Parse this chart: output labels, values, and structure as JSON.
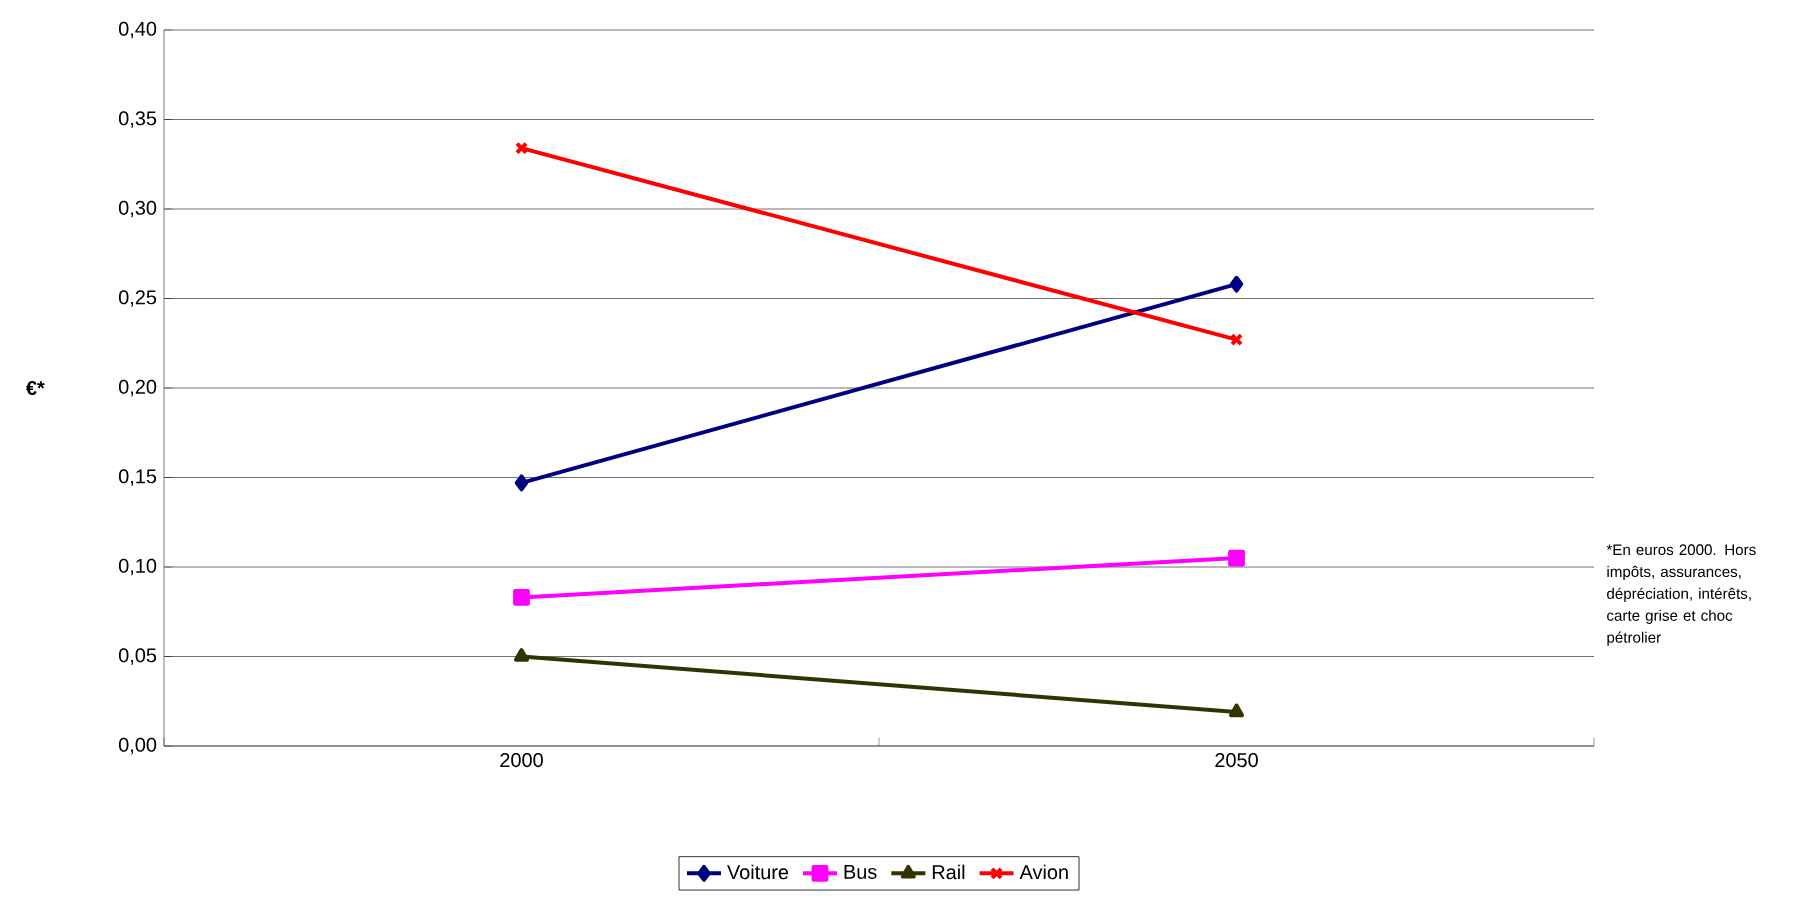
{
  "chart_data": {
    "type": "line",
    "ylabel": "€*",
    "categories": [
      "2000",
      "2050"
    ],
    "series": [
      {
        "name": "Voiture",
        "color": "#000080",
        "marker": "diamond",
        "values": [
          0.147,
          0.258
        ]
      },
      {
        "name": "Bus",
        "color": "#ff00ff",
        "marker": "square",
        "values": [
          0.083,
          0.105
        ]
      },
      {
        "name": "Rail",
        "color": "#333300",
        "marker": "triangle",
        "values": [
          0.05,
          0.019
        ]
      },
      {
        "name": "Avion",
        "color": "#ff0000",
        "marker": "cross",
        "values": [
          0.334,
          0.227
        ]
      }
    ],
    "ylim": [
      0,
      0.4
    ],
    "yticks": [
      {
        "value": 0,
        "label": "0,00"
      },
      {
        "value": 0.05,
        "label": "0,05"
      },
      {
        "value": 0.1,
        "label": "0,10"
      },
      {
        "value": 0.15,
        "label": "0,15"
      },
      {
        "value": 0.2,
        "label": "0,20"
      },
      {
        "value": 0.25,
        "label": "0,25"
      },
      {
        "value": 0.3,
        "label": "0,30"
      },
      {
        "value": 0.35,
        "label": "0,35"
      },
      {
        "value": 0.4,
        "label": "0,40"
      }
    ],
    "grid": "y",
    "legend": "bottom",
    "line_style": "solid",
    "annotations": [
      "*En euros 2000. Hors impôts, assurances, dépréciation, intérêts, carte grise et choc pétrolier"
    ]
  }
}
